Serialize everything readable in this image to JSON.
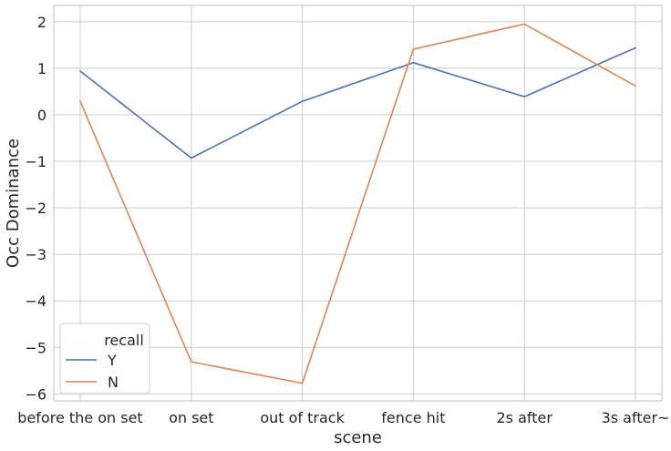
{
  "chart_data": {
    "type": "line",
    "title": "",
    "xlabel": "scene",
    "ylabel": "Occ Dominance",
    "categories": [
      "before the on set",
      "on set",
      "out of track",
      "fence hit",
      "2s after",
      "3s after~"
    ],
    "ylim": [
      -6.15,
      2.35
    ],
    "yticks": [
      2,
      1,
      0,
      -1,
      -2,
      -3,
      -4,
      -5,
      -6
    ],
    "ytick_labels": [
      "2",
      "1",
      "0",
      "−1",
      "−2",
      "−3",
      "−4",
      "−5",
      "−6"
    ],
    "grid": true,
    "legend": {
      "title": "recall",
      "position": "lower-left"
    },
    "series": [
      {
        "name": "Y",
        "color": "#4c72b0",
        "values": [
          0.94,
          -0.93,
          0.29,
          1.12,
          0.39,
          1.44
        ]
      },
      {
        "name": "N",
        "color": "#dd8452",
        "values": [
          0.29,
          -5.31,
          -5.77,
          1.41,
          1.95,
          0.62
        ]
      }
    ]
  }
}
